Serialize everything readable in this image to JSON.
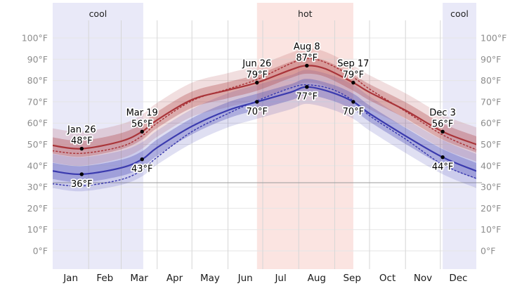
{
  "chart_data": {
    "type": "line",
    "description": "Average high (red) and low (blue) temperature by day of year with percentile bands, dotted perceived-temperature lines, and cool/hot season bands",
    "unit": "°F",
    "y_axis": {
      "min": 0,
      "max": 100,
      "step": 10,
      "tick_labels": [
        "0°F",
        "10°F",
        "20°F",
        "30°F",
        "40°F",
        "50°F",
        "60°F",
        "70°F",
        "80°F",
        "90°F",
        "100°F"
      ],
      "freezing_line_value": 32,
      "labels_on_both_sides": true
    },
    "x_axis": {
      "month_labels": [
        "Jan",
        "Feb",
        "Mar",
        "Apr",
        "May",
        "Jun",
        "Jul",
        "Aug",
        "Sep",
        "Oct",
        "Nov",
        "Dec"
      ],
      "month_start_days": [
        0,
        31,
        59,
        90,
        120,
        151,
        181,
        212,
        243,
        273,
        304,
        334,
        365
      ],
      "days_in_year": 365
    },
    "seasons": [
      {
        "label": "cool",
        "start_day": 0,
        "end_day": 78
      },
      {
        "label": "hot",
        "start_day": 176,
        "end_day": 259
      },
      {
        "label": "cool",
        "start_day": 336,
        "end_day": 365
      }
    ],
    "milestones": [
      {
        "date": "Jan 26",
        "day": 25,
        "high": 48,
        "low": 36,
        "high_label": "48°F",
        "low_label": "36°F"
      },
      {
        "date": "Mar 19",
        "day": 77,
        "high": 56,
        "low": 43,
        "high_label": "56°F",
        "low_label": "43°F"
      },
      {
        "date": "Jun 26",
        "day": 176,
        "high": 79,
        "low": 70,
        "high_label": "79°F",
        "low_label": "70°F"
      },
      {
        "date": "Aug 8",
        "day": 219,
        "high": 87,
        "low": 77,
        "high_label": "87°F",
        "low_label": "77°F"
      },
      {
        "date": "Sep 17",
        "day": 259,
        "high": 79,
        "low": 70,
        "high_label": "79°F",
        "low_label": "70°F"
      },
      {
        "date": "Dec 3",
        "day": 336,
        "high": 56,
        "low": 44,
        "high_label": "56°F",
        "low_label": "44°F"
      }
    ],
    "band_half_width_inner_deg": 3.8,
    "band_half_width_outer_deg": 8,
    "series": [
      {
        "id": "average_high",
        "style": "solid",
        "color_key": "high_line",
        "band": true,
        "points": [
          [
            0,
            49.5
          ],
          [
            25,
            48
          ],
          [
            59,
            51.5
          ],
          [
            77,
            56
          ],
          [
            90,
            61.5
          ],
          [
            120,
            71
          ],
          [
            151,
            75.5
          ],
          [
            176,
            79
          ],
          [
            205,
            85
          ],
          [
            219,
            87
          ],
          [
            235,
            85.5
          ],
          [
            259,
            79
          ],
          [
            273,
            74.5
          ],
          [
            304,
            66
          ],
          [
            336,
            56
          ],
          [
            365,
            50
          ]
        ]
      },
      {
        "id": "high_dotted",
        "style": "dotted",
        "color_key": "high_line",
        "band": false,
        "points": [
          [
            0,
            47
          ],
          [
            25,
            45.8
          ],
          [
            59,
            49
          ],
          [
            77,
            54
          ],
          [
            90,
            60
          ],
          [
            120,
            70.5
          ],
          [
            151,
            76
          ],
          [
            176,
            80.5
          ],
          [
            205,
            88
          ],
          [
            219,
            90.3
          ],
          [
            235,
            88.5
          ],
          [
            259,
            81.5
          ],
          [
            273,
            76
          ],
          [
            304,
            65.5
          ],
          [
            336,
            54.5
          ],
          [
            365,
            47.5
          ]
        ]
      },
      {
        "id": "average_low",
        "style": "solid",
        "color_key": "low_line",
        "band": true,
        "points": [
          [
            0,
            37.5
          ],
          [
            25,
            36
          ],
          [
            59,
            39
          ],
          [
            77,
            43
          ],
          [
            90,
            48.5
          ],
          [
            120,
            58.5
          ],
          [
            151,
            66
          ],
          [
            176,
            70
          ],
          [
            205,
            74.5
          ],
          [
            219,
            77
          ],
          [
            240,
            74.5
          ],
          [
            259,
            70
          ],
          [
            273,
            64.5
          ],
          [
            304,
            54
          ],
          [
            336,
            44
          ],
          [
            365,
            37.5
          ]
        ]
      },
      {
        "id": "low_dotted",
        "style": "dotted",
        "color_key": "low_line",
        "band": false,
        "points": [
          [
            0,
            31.5
          ],
          [
            25,
            30.5
          ],
          [
            59,
            33.5
          ],
          [
            77,
            38
          ],
          [
            90,
            44
          ],
          [
            120,
            56
          ],
          [
            151,
            64.5
          ],
          [
            176,
            70.5
          ],
          [
            205,
            76.5
          ],
          [
            219,
            78
          ],
          [
            240,
            76
          ],
          [
            259,
            70.5
          ],
          [
            273,
            63.5
          ],
          [
            304,
            52.5
          ],
          [
            336,
            40.5
          ],
          [
            365,
            34
          ]
        ]
      }
    ]
  },
  "colors": {
    "background": "#ffffff",
    "high_line": "#a93439",
    "low_line": "#3a3aae",
    "hot_season_bg": "#fbe4e1",
    "cool_season_bg": "#e9e9f8",
    "grid_h": "#e6e6e6",
    "grid_v": "#d6d6d6",
    "freezing_line": "#9a9a9a",
    "tick_text": "#8d8d8d",
    "month_text": "#1a1a1a",
    "milestone_text": "#000000",
    "season_text": "#222222",
    "dot": "#000000"
  }
}
